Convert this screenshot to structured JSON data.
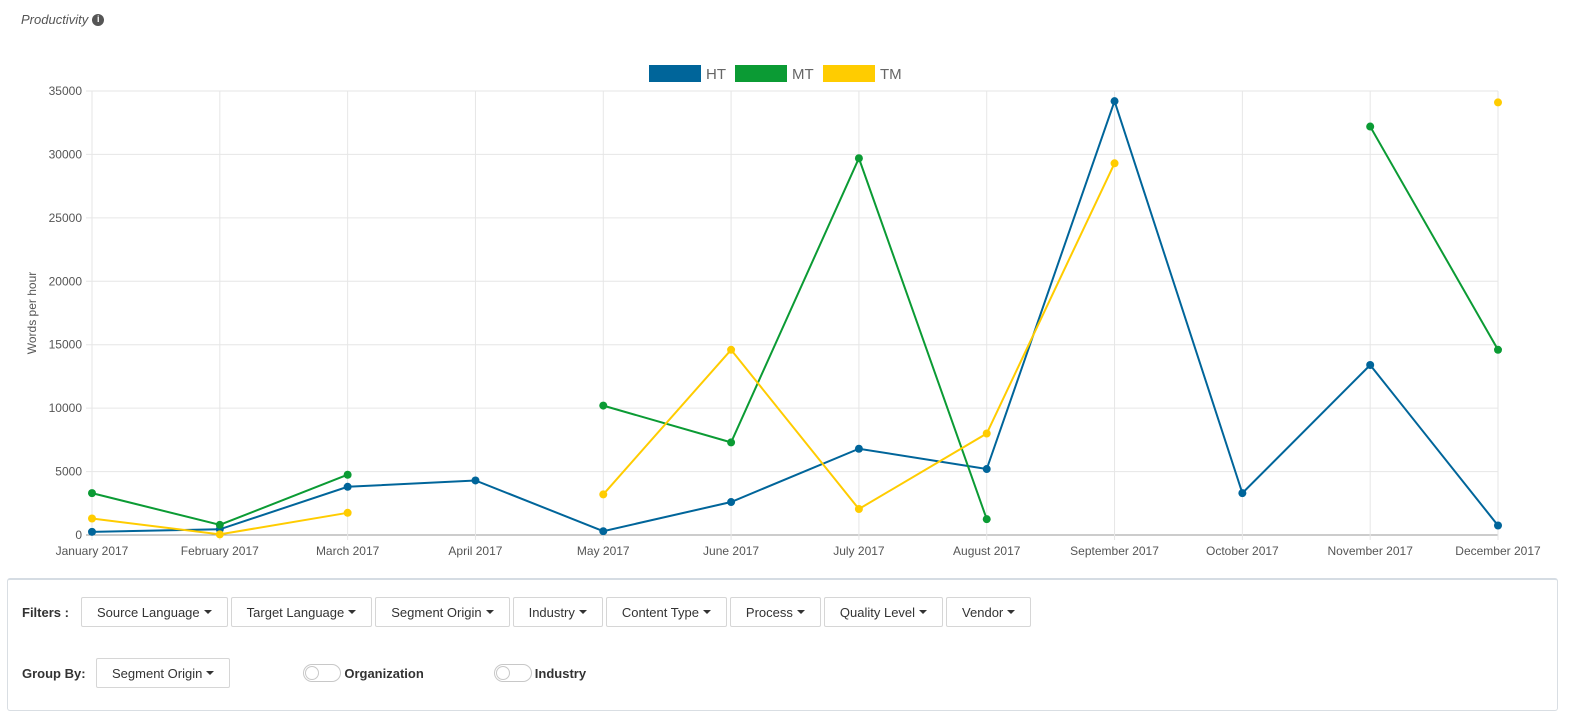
{
  "panel": {
    "title": "Productivity",
    "info_icon": "info-circle-icon"
  },
  "chart_data": {
    "type": "line",
    "ylabel": "Words per hour",
    "ylim": [
      0,
      35000
    ],
    "yticks": [
      0,
      5000,
      10000,
      15000,
      20000,
      25000,
      30000,
      35000
    ],
    "categories": [
      "January 2017",
      "February 2017",
      "March 2017",
      "April 2017",
      "May 2017",
      "June 2017",
      "July 2017",
      "August 2017",
      "September 2017",
      "October 2017",
      "November 2017",
      "December 2017"
    ],
    "legend_position": "top-center",
    "grid": true,
    "series": [
      {
        "name": "HT",
        "color": "#00659a",
        "values": [
          250,
          450,
          3800,
          4300,
          300,
          2600,
          6800,
          5200,
          34200,
          3300,
          13400,
          750
        ]
      },
      {
        "name": "MT",
        "color": "#0b9b34",
        "values": [
          3300,
          800,
          4750,
          null,
          10200,
          7300,
          29700,
          1250,
          null,
          null,
          32200,
          14600
        ]
      },
      {
        "name": "TM",
        "color": "#ffcc00",
        "values": [
          1300,
          50,
          1750,
          null,
          3200,
          14600,
          2050,
          8000,
          29300,
          null,
          null,
          34100
        ]
      }
    ]
  },
  "filters": {
    "label": "Filters :",
    "buttons": [
      "Source Language",
      "Target Language",
      "Segment Origin",
      "Industry",
      "Content Type",
      "Process",
      "Quality Level",
      "Vendor"
    ]
  },
  "group_by": {
    "label": "Group By:",
    "selected": "Segment Origin",
    "toggles": [
      {
        "label": "Organization",
        "on": false
      },
      {
        "label": "Industry",
        "on": false
      }
    ]
  }
}
